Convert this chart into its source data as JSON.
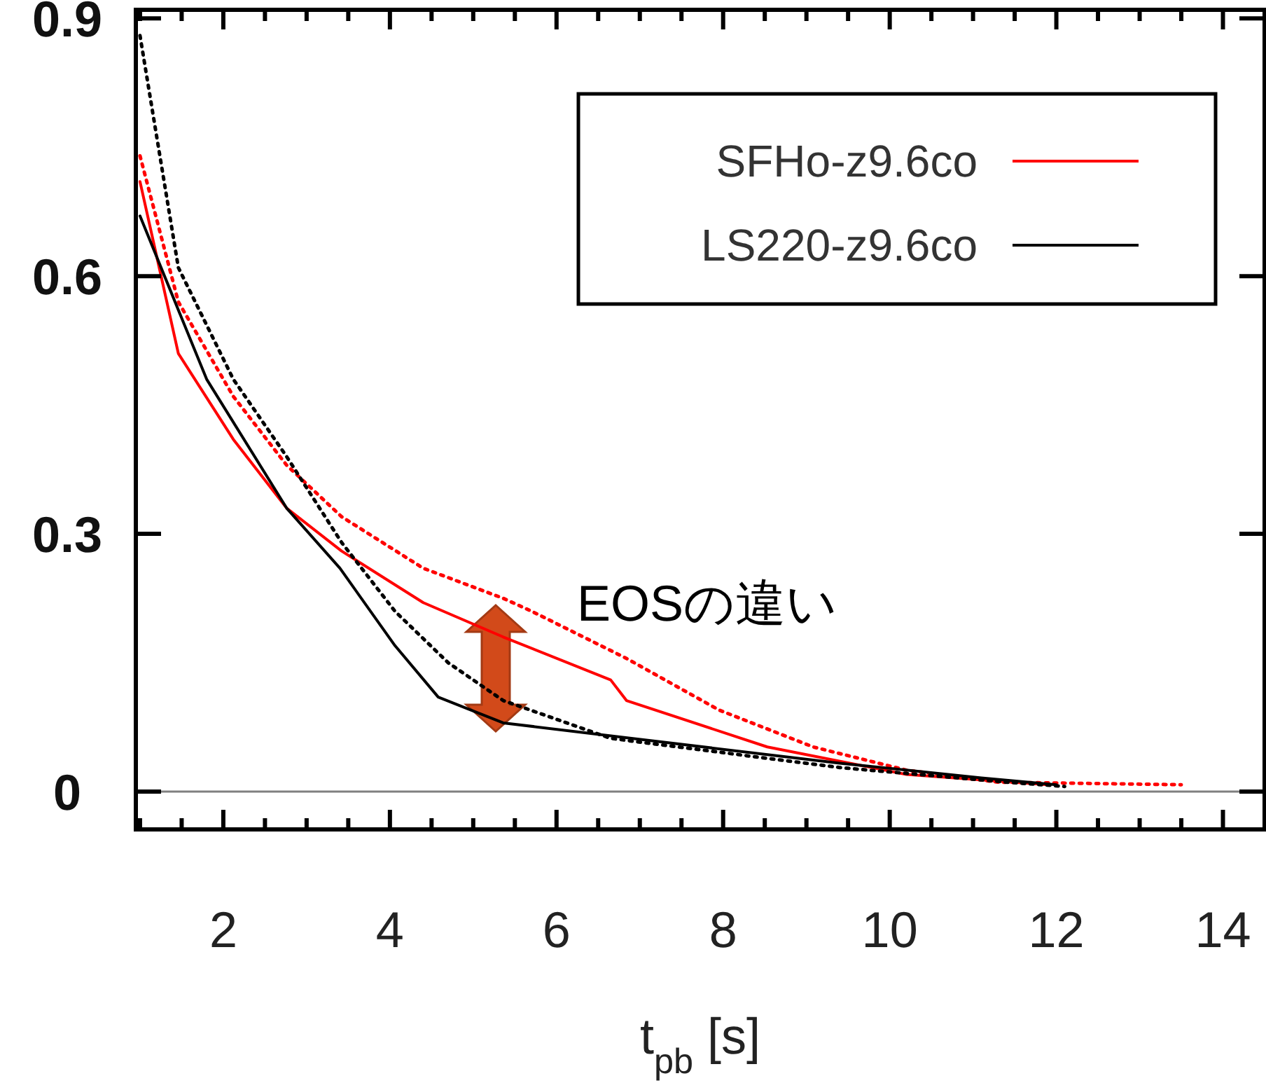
{
  "chart_data": {
    "type": "line",
    "xlabel": "t$_{pb}$ [s]",
    "xlim": [
      0.95,
      14.5
    ],
    "ylim": [
      -0.044,
      0.91
    ],
    "xticks": [
      2,
      4,
      6,
      8,
      10,
      12,
      14
    ],
    "yticks": [
      0,
      0.3,
      0.6,
      0.9
    ],
    "grid": false,
    "legend": "top right",
    "marker": "none",
    "ref_lines": [
      {
        "axis": "y",
        "value": 0,
        "color": "#808080"
      }
    ],
    "annotations": [
      "EOSの違い"
    ],
    "series": [
      {
        "name": "SFHo-z9.6co",
        "color": "#ff0000",
        "line_style": "solid",
        "x": [
          1,
          1.46,
          2.12,
          2.76,
          3.42,
          4.4,
          5.36,
          6.65,
          6.84,
          8.53,
          10.2,
          11.9
        ],
        "values": [
          0.71,
          0.51,
          0.41,
          0.33,
          0.28,
          0.22,
          0.18,
          0.13,
          0.106,
          0.052,
          0.02,
          0.008
        ]
      },
      {
        "color": "#ff0000",
        "line_style": "dotted",
        "x": [
          1,
          1.46,
          2.12,
          2.76,
          3.42,
          4.4,
          5.36,
          5.7,
          6.84,
          7.95,
          9.08,
          10.2,
          11.3,
          13.5
        ],
        "values": [
          0.74,
          0.57,
          0.46,
          0.38,
          0.32,
          0.26,
          0.225,
          0.21,
          0.155,
          0.095,
          0.052,
          0.025,
          0.011,
          0.008
        ]
      },
      {
        "name": "LS220-z9.6co",
        "color": "#000000",
        "line_style": "solid",
        "x": [
          1,
          1.8,
          2.76,
          3.4,
          4.06,
          4.58,
          5.36,
          6.9,
          9.4,
          11.1,
          12
        ],
        "values": [
          0.67,
          0.48,
          0.33,
          0.26,
          0.17,
          0.11,
          0.08,
          0.062,
          0.033,
          0.016,
          0.008
        ]
      },
      {
        "color": "#000000",
        "line_style": "dotted",
        "x": [
          1,
          1.46,
          2.12,
          2.76,
          3.42,
          4.06,
          4.7,
          5.36,
          6.65,
          9.4,
          11.4,
          12.1
        ],
        "values": [
          0.88,
          0.61,
          0.48,
          0.39,
          0.29,
          0.21,
          0.15,
          0.106,
          0.062,
          0.028,
          0.011,
          0.006
        ]
      }
    ]
  }
}
